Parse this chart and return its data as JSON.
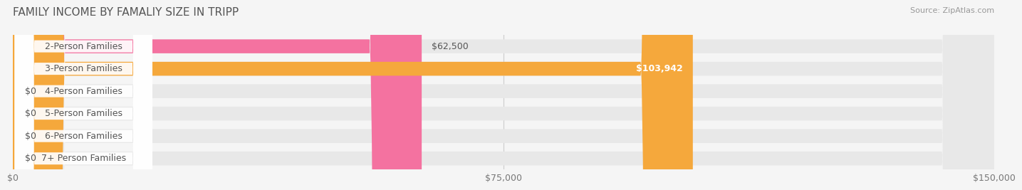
{
  "title": "FAMILY INCOME BY FAMALIY SIZE IN TRIPP",
  "source_text": "Source: ZipAtlas.com",
  "categories": [
    "2-Person Families",
    "3-Person Families",
    "4-Person Families",
    "5-Person Families",
    "6-Person Families",
    "7+ Person Families"
  ],
  "values": [
    62500,
    103942,
    0,
    0,
    0,
    0
  ],
  "bar_colors": [
    "#f472a0",
    "#f5a83c",
    "#f4a0a0",
    "#a0b4e8",
    "#c8a8d8",
    "#7ecece"
  ],
  "value_labels": [
    "$62,500",
    "$103,942",
    "$0",
    "$0",
    "$0",
    "$0"
  ],
  "value_label_inside": [
    false,
    true,
    false,
    false,
    false,
    false
  ],
  "xlim": [
    0,
    150000
  ],
  "xtick_values": [
    0,
    75000,
    150000
  ],
  "xtick_labels": [
    "$0",
    "$75,000",
    "$150,000"
  ],
  "background_color": "#f5f5f5",
  "bar_background_color": "#e8e8e8",
  "title_fontsize": 11,
  "source_fontsize": 8,
  "label_fontsize": 9,
  "value_fontsize": 9
}
